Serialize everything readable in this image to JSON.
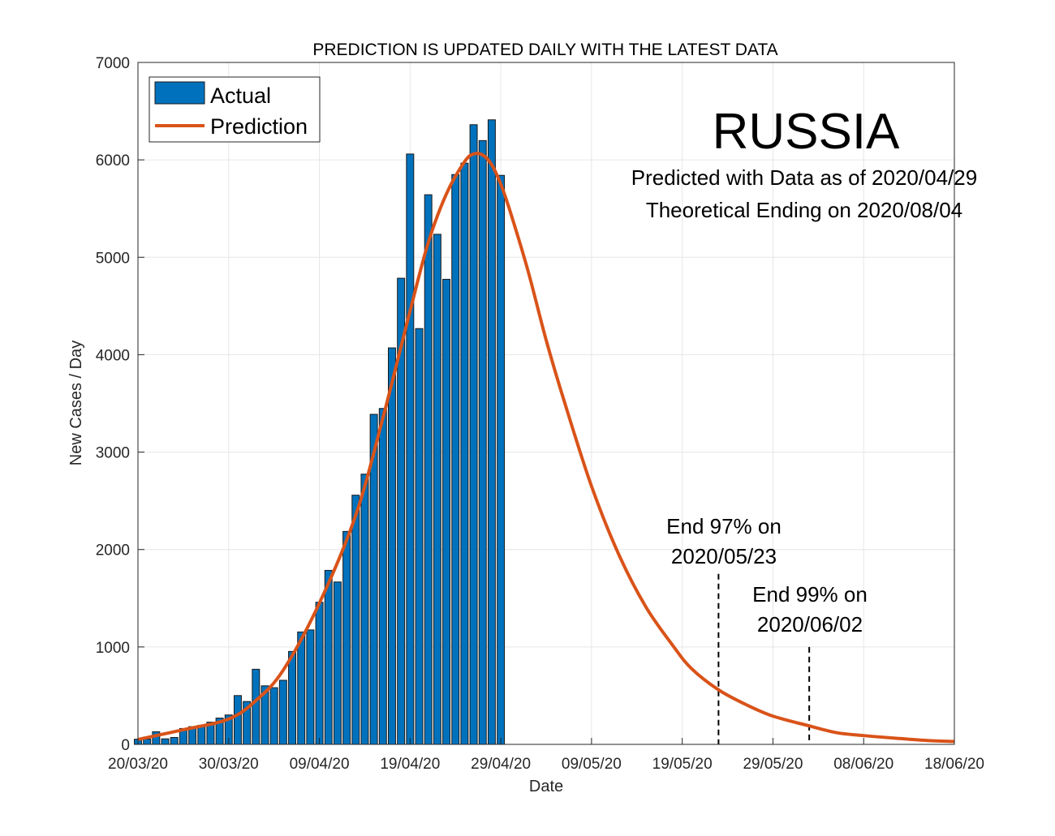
{
  "chart_data": {
    "type": "bar",
    "title": "PREDICTION IS UPDATED DAILY WITH THE LATEST DATA",
    "xlabel": "Date",
    "ylabel": "New Cases / Day",
    "ylim": [
      0,
      7000
    ],
    "yticks": [
      0,
      1000,
      2000,
      3000,
      4000,
      5000,
      6000,
      7000
    ],
    "ytick_labels": [
      "0",
      "1000",
      "2000",
      "3000",
      "4000",
      "5000",
      "6000",
      "7000"
    ],
    "xlim": [
      "2020-03-20",
      "2020-06-18"
    ],
    "xticks": [
      "2020-03-20",
      "2020-03-30",
      "2020-04-09",
      "2020-04-19",
      "2020-04-29",
      "2020-05-09",
      "2020-05-19",
      "2020-05-29",
      "2020-06-08",
      "2020-06-18"
    ],
    "xtick_labels": [
      "20/03/20",
      "30/03/20",
      "09/04/20",
      "19/04/20",
      "29/04/20",
      "09/05/20",
      "19/05/20",
      "29/05/20",
      "08/06/20",
      "18/06/20"
    ],
    "grid": true,
    "legend": {
      "position": "top-left",
      "entries": [
        "Actual",
        "Prediction"
      ]
    },
    "colors": {
      "actual": "#0072BD",
      "prediction": "#D95319",
      "bar_edge": "#1a1a1a"
    },
    "series": [
      {
        "name": "Actual",
        "type": "bar",
        "x": [
          "2020-03-20",
          "2020-03-21",
          "2020-03-22",
          "2020-03-23",
          "2020-03-24",
          "2020-03-25",
          "2020-03-26",
          "2020-03-27",
          "2020-03-28",
          "2020-03-29",
          "2020-03-30",
          "2020-03-31",
          "2020-04-01",
          "2020-04-02",
          "2020-04-03",
          "2020-04-04",
          "2020-04-05",
          "2020-04-06",
          "2020-04-07",
          "2020-04-08",
          "2020-04-09",
          "2020-04-10",
          "2020-04-11",
          "2020-04-12",
          "2020-04-13",
          "2020-04-14",
          "2020-04-15",
          "2020-04-16",
          "2020-04-17",
          "2020-04-18",
          "2020-04-19",
          "2020-04-20",
          "2020-04-21",
          "2020-04-22",
          "2020-04-23",
          "2020-04-24",
          "2020-04-25",
          "2020-04-26",
          "2020-04-27",
          "2020-04-28",
          "2020-04-29"
        ],
        "values": [
          53,
          54,
          130,
          57,
          71,
          163,
          182,
          196,
          228,
          270,
          302,
          501,
          440,
          771,
          601,
          582,
          658,
          954,
          1154,
          1175,
          1459,
          1786,
          1667,
          2186,
          2558,
          2774,
          3388,
          3448,
          4070,
          4785,
          6060,
          4268,
          5642,
          5236,
          4774,
          5849,
          5966,
          6361,
          6198,
          6411,
          5841
        ]
      },
      {
        "name": "Prediction",
        "type": "line",
        "x": [
          "2020-03-20",
          "2020-03-25",
          "2020-03-30",
          "2020-04-02",
          "2020-04-05",
          "2020-04-09",
          "2020-04-13",
          "2020-04-16",
          "2020-04-19",
          "2020-04-21",
          "2020-04-23",
          "2020-04-25",
          "2020-04-26",
          "2020-04-27",
          "2020-04-28",
          "2020-04-29",
          "2020-04-30",
          "2020-05-02",
          "2020-05-04",
          "2020-05-06",
          "2020-05-09",
          "2020-05-12",
          "2020-05-15",
          "2020-05-18",
          "2020-05-20",
          "2020-05-23",
          "2020-05-26",
          "2020-05-29",
          "2020-06-02",
          "2020-06-05",
          "2020-06-08",
          "2020-06-12",
          "2020-06-15",
          "2020-06-18"
        ],
        "values": [
          50,
          150,
          260,
          450,
          760,
          1450,
          2350,
          3350,
          4450,
          5150,
          5650,
          5980,
          6060,
          6050,
          5950,
          5750,
          5480,
          4860,
          4150,
          3520,
          2650,
          1950,
          1410,
          1010,
          780,
          560,
          410,
          290,
          190,
          120,
          90,
          60,
          40,
          30
        ]
      }
    ],
    "annotations": [
      {
        "line1": "RUSSIA"
      },
      {
        "line1": "Predicted with Data as of 2020/04/29",
        "line2": "Theoretical Ending on 2020/08/04"
      },
      {
        "line1": "End 97% on",
        "line2": "2020/05/23",
        "date": "2020-05-23",
        "marker_top": 1750
      },
      {
        "line1": "End 99% on",
        "line2": "2020/06/02",
        "date": "2020-06-02",
        "marker_top": 1000
      }
    ]
  }
}
